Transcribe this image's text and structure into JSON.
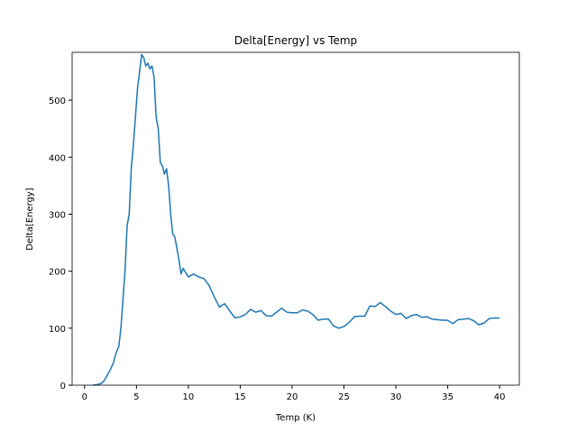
{
  "chart_data": {
    "type": "line",
    "title": "Delta[Energy] vs Temp",
    "x_label": "Temp (K)",
    "y_label": "Delta[Energy]",
    "x": [
      0.8,
      1.2,
      1.6,
      1.9,
      2.2,
      2.5,
      2.8,
      3.0,
      3.3,
      3.5,
      3.7,
      3.9,
      4.1,
      4.3,
      4.5,
      4.7,
      4.9,
      5.1,
      5.3,
      5.5,
      5.7,
      5.9,
      6.1,
      6.3,
      6.5,
      6.7,
      6.9,
      7.1,
      7.3,
      7.5,
      7.7,
      7.9,
      8.1,
      8.3,
      8.5,
      8.7,
      8.9,
      9.1,
      9.3,
      9.5,
      10,
      10.5,
      11,
      11.5,
      12,
      12.5,
      13,
      13.5,
      14,
      14.5,
      15,
      15.5,
      16,
      16.5,
      17,
      17.5,
      18,
      18.5,
      19,
      19.5,
      20,
      20.5,
      21,
      21.5,
      22,
      22.5,
      23,
      23.5,
      24,
      24.5,
      25,
      25.5,
      26,
      26.5,
      27,
      27.5,
      28,
      28.5,
      29,
      29.5,
      30,
      30.5,
      31,
      31.5,
      32,
      32.5,
      33,
      33.5,
      34,
      34.5,
      35,
      35.5,
      36,
      36.5,
      37,
      37.5,
      38,
      38.5,
      39,
      39.5,
      40
    ],
    "series": [
      {
        "name": "Delta[Energy]",
        "color": "#1f77b4",
        "values": [
          0,
          1,
          3,
          8,
          18,
          28,
          40,
          55,
          68,
          100,
          150,
          200,
          280,
          300,
          380,
          420,
          470,
          520,
          550,
          580,
          575,
          560,
          565,
          555,
          560,
          540,
          470,
          450,
          390,
          385,
          370,
          380,
          350,
          300,
          265,
          260,
          240,
          220,
          195,
          205,
          190,
          195,
          190,
          187,
          175,
          155,
          137,
          143,
          130,
          118,
          120,
          124,
          133,
          128,
          131,
          122,
          121,
          128,
          135,
          128,
          127,
          127,
          132,
          130,
          124,
          114,
          116,
          116,
          104,
          100,
          103,
          110,
          120,
          121,
          121,
          139,
          138,
          145,
          138,
          130,
          124,
          126,
          117,
          122,
          124,
          119,
          120,
          116,
          115,
          114,
          114,
          108,
          115,
          116,
          117,
          113,
          106,
          109,
          117,
          118,
          118
        ]
      }
    ],
    "xlim": [
      -1.2,
      41.9
    ],
    "ylim": [
      0,
      584
    ],
    "xticks": [
      0,
      5,
      10,
      15,
      20,
      25,
      30,
      35,
      40
    ],
    "yticks": [
      0,
      100,
      200,
      300,
      400,
      500
    ]
  }
}
